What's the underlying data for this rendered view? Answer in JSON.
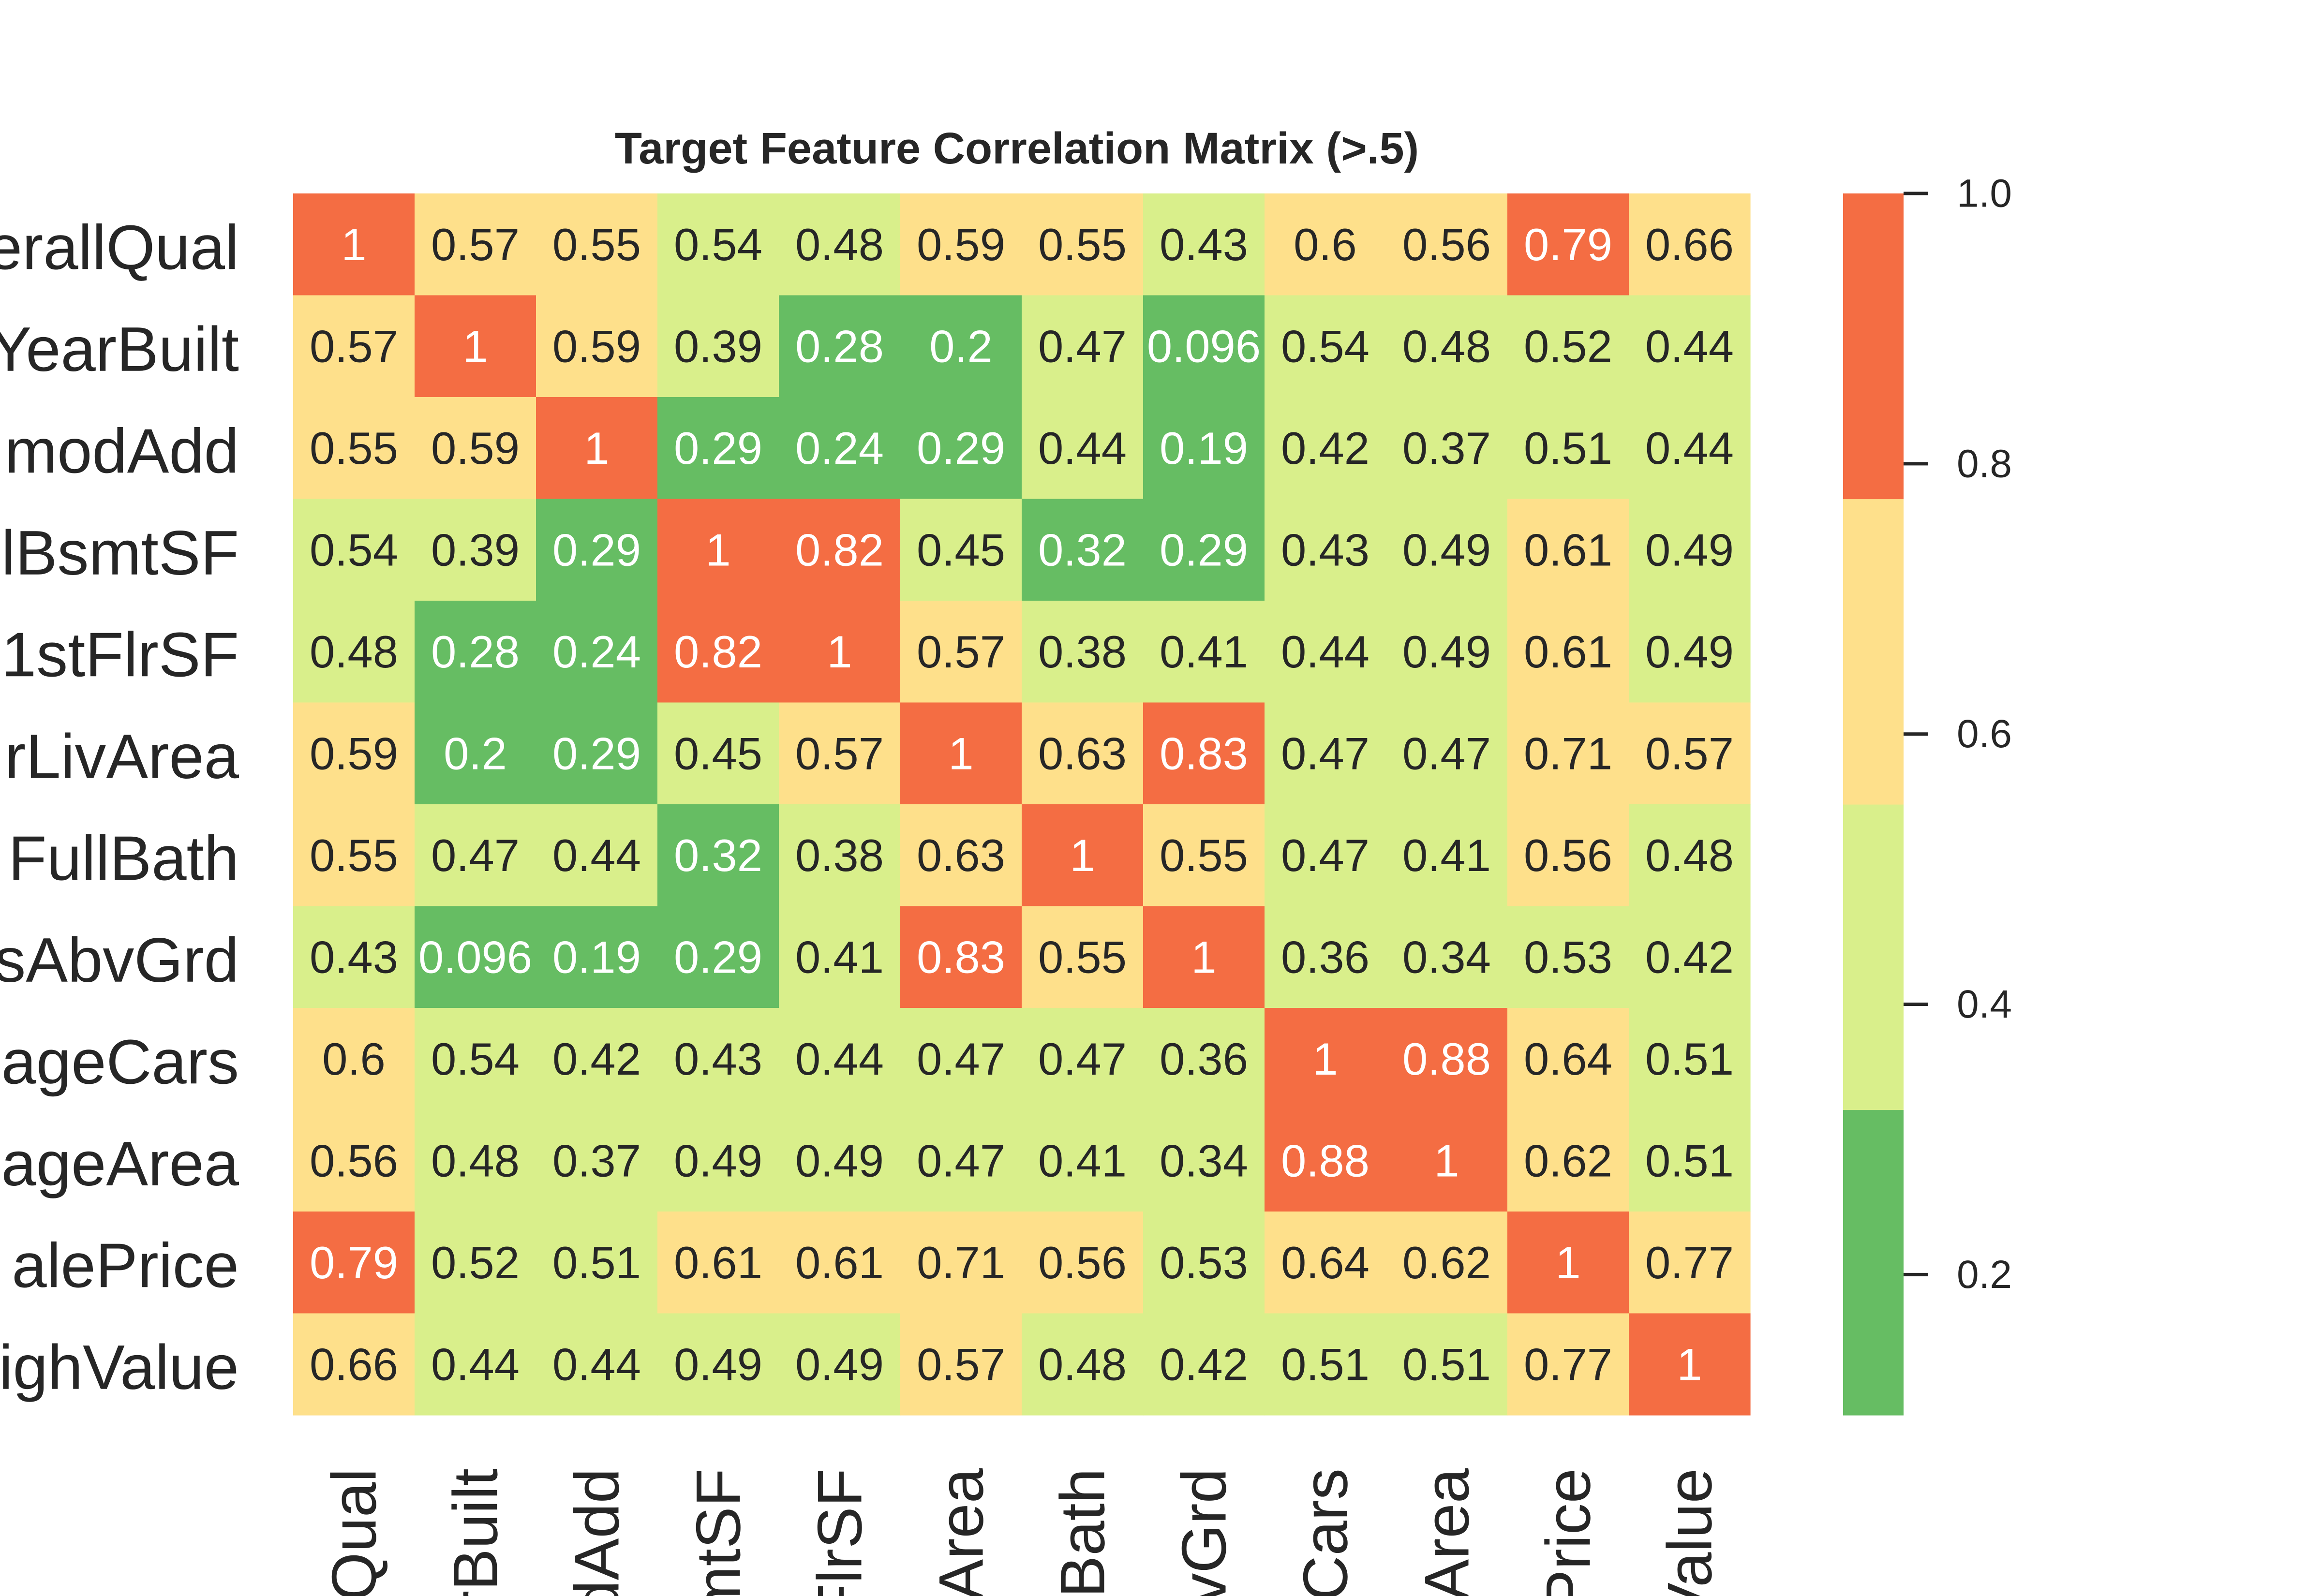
{
  "chart_data": {
    "type": "heatmap",
    "title": "Target Feature Correlation Matrix (>.5)",
    "row_labels": [
      "erallQual",
      "YearBuilt",
      "modAdd",
      "lBsmtSF",
      "1stFlrSF",
      "rLivArea",
      "FullBath",
      "sAbvGrd",
      "ageCars",
      "ageArea",
      "alePrice",
      "ighValue"
    ],
    "col_labels": [
      "lQual",
      "rBuilt",
      "dAdd",
      "mtSF",
      "FlrSF",
      "vArea",
      "lBath",
      "bvGrd",
      "eCars",
      "eArea",
      "Price",
      "Value"
    ],
    "cell_labels": [
      [
        "1",
        "0.57",
        "0.55",
        "0.54",
        "0.48",
        "0.59",
        "0.55",
        "0.43",
        "0.6",
        "0.56",
        "0.79",
        "0.66"
      ],
      [
        "0.57",
        "1",
        "0.59",
        "0.39",
        "0.28",
        "0.2",
        "0.47",
        "0.096",
        "0.54",
        "0.48",
        "0.52",
        "0.44"
      ],
      [
        "0.55",
        "0.59",
        "1",
        "0.29",
        "0.24",
        "0.29",
        "0.44",
        "0.19",
        "0.42",
        "0.37",
        "0.51",
        "0.44"
      ],
      [
        "0.54",
        "0.39",
        "0.29",
        "1",
        "0.82",
        "0.45",
        "0.32",
        "0.29",
        "0.43",
        "0.49",
        "0.61",
        "0.49"
      ],
      [
        "0.48",
        "0.28",
        "0.24",
        "0.82",
        "1",
        "0.57",
        "0.38",
        "0.41",
        "0.44",
        "0.49",
        "0.61",
        "0.49"
      ],
      [
        "0.59",
        "0.2",
        "0.29",
        "0.45",
        "0.57",
        "1",
        "0.63",
        "0.83",
        "0.47",
        "0.47",
        "0.71",
        "0.57"
      ],
      [
        "0.55",
        "0.47",
        "0.44",
        "0.32",
        "0.38",
        "0.63",
        "1",
        "0.55",
        "0.47",
        "0.41",
        "0.56",
        "0.48"
      ],
      [
        "0.43",
        "0.096",
        "0.19",
        "0.29",
        "0.41",
        "0.83",
        "0.55",
        "1",
        "0.36",
        "0.34",
        "0.53",
        "0.42"
      ],
      [
        "0.6",
        "0.54",
        "0.42",
        "0.43",
        "0.44",
        "0.47",
        "0.47",
        "0.36",
        "1",
        "0.88",
        "0.64",
        "0.51"
      ],
      [
        "0.56",
        "0.48",
        "0.37",
        "0.49",
        "0.49",
        "0.47",
        "0.41",
        "0.34",
        "0.88",
        "1",
        "0.62",
        "0.51"
      ],
      [
        "0.79",
        "0.52",
        "0.51",
        "0.61",
        "0.61",
        "0.71",
        "0.56",
        "0.53",
        "0.64",
        "0.62",
        "1",
        "0.77"
      ],
      [
        "0.66",
        "0.44",
        "0.44",
        "0.49",
        "0.49",
        "0.57",
        "0.48",
        "0.42",
        "0.51",
        "0.51",
        "0.77",
        "1"
      ]
    ],
    "colorbar": {
      "range": [
        0.096,
        1.0
      ],
      "ticks": [
        "1.0",
        "0.8",
        "0.6",
        "0.4",
        "0.2"
      ],
      "tick_values": [
        1.0,
        0.8,
        0.6,
        0.4,
        0.2
      ],
      "bins": [
        {
          "from": 0.096,
          "to": 0.322,
          "color": "#66bd63"
        },
        {
          "from": 0.322,
          "to": 0.548,
          "color": "#d9ef8b"
        },
        {
          "from": 0.548,
          "to": 0.774,
          "color": "#fee08b"
        },
        {
          "from": 0.774,
          "to": 1.0,
          "color": "#f46d43"
        }
      ]
    },
    "legend": "right colorbar",
    "grid": false
  }
}
